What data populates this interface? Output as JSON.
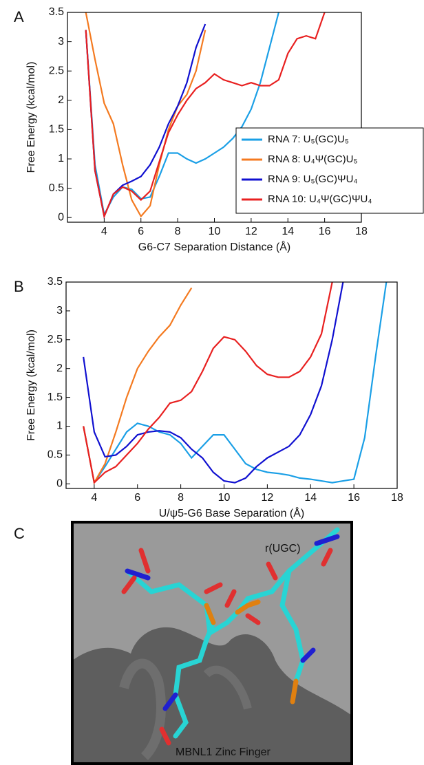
{
  "chart_data": [
    {
      "type": "line",
      "panel_label": "A",
      "ylabel": "Free Energy (kcal/mol)",
      "xlabel": "G6-C7 Separation Distance (Å)",
      "xlim": [
        2,
        18
      ],
      "ylim": [
        -0.08,
        3.5
      ],
      "xticks": [
        4,
        6,
        8,
        10,
        12,
        14,
        16,
        18
      ],
      "yticks": [
        0,
        0.5,
        1,
        1.5,
        2,
        2.5,
        3,
        3.5
      ],
      "legend": "right",
      "x": [
        3,
        3.5,
        4,
        4.5,
        5,
        5.5,
        6,
        6.5,
        7,
        7.5,
        8,
        8.5,
        9,
        9.5,
        10,
        10.5,
        11,
        11.5,
        12,
        12.5,
        13,
        13.5,
        14,
        14.5,
        15,
        15.5,
        16
      ],
      "series": [
        {
          "name": "RNA 7: U₅(GC)U₅",
          "color": "#1a9fe6",
          "values": [
            3.2,
            0.9,
            0.05,
            0.35,
            0.52,
            0.48,
            0.32,
            0.35,
            0.7,
            1.1,
            1.1,
            1.0,
            0.93,
            1.0,
            1.1,
            1.2,
            1.35,
            1.55,
            1.85,
            2.3,
            2.9,
            3.5,
            null,
            null,
            null,
            null,
            null
          ]
        },
        {
          "name": "RNA 8: U₄Ψ(GC)U₅",
          "color": "#f47a20",
          "values": [
            3.5,
            2.7,
            1.95,
            1.6,
            0.9,
            0.3,
            0.02,
            0.2,
            0.9,
            1.5,
            1.9,
            2.1,
            2.5,
            3.2,
            null,
            null,
            null,
            null,
            null,
            null,
            null,
            null,
            null,
            null,
            null,
            null,
            null
          ]
        },
        {
          "name": "RNA 9: U₅(GC)ΨU₄",
          "color": "#1010d0",
          "values": [
            3.2,
            0.8,
            0.02,
            0.4,
            0.55,
            0.62,
            0.7,
            0.9,
            1.2,
            1.6,
            1.9,
            2.3,
            2.9,
            3.3,
            null,
            null,
            null,
            null,
            null,
            null,
            null,
            null,
            null,
            null,
            null,
            null,
            null
          ]
        },
        {
          "name": "RNA 10: U₄Ψ(GC)ΨU₄",
          "color": "#e82020",
          "values": [
            3.2,
            0.8,
            0.02,
            0.4,
            0.52,
            0.45,
            0.3,
            0.45,
            0.95,
            1.45,
            1.75,
            2.0,
            2.2,
            2.3,
            2.45,
            2.35,
            2.3,
            2.25,
            2.3,
            2.25,
            2.25,
            2.35,
            2.8,
            3.05,
            3.1,
            3.05,
            3.5
          ]
        }
      ]
    },
    {
      "type": "line",
      "panel_label": "B",
      "ylabel": "Free Energy (kcal/mol)",
      "xlabel": "U/ψ5-G6 Base Separation (Å)",
      "xlim": [
        2.7,
        18
      ],
      "ylim": [
        -0.08,
        3.5
      ],
      "xticks": [
        4,
        6,
        8,
        10,
        12,
        14,
        16,
        18
      ],
      "yticks": [
        0,
        0.5,
        1,
        1.5,
        2,
        2.5,
        3,
        3.5
      ],
      "x": [
        3.5,
        4,
        4.5,
        5,
        5.5,
        6,
        6.5,
        7,
        7.5,
        8,
        8.5,
        9,
        9.5,
        10,
        10.5,
        11,
        11.5,
        12,
        12.5,
        13,
        13.5,
        14,
        14.5,
        15,
        15.5,
        16,
        16.5,
        17,
        17.5
      ],
      "series": [
        {
          "color": "#1a9fe6",
          "values": [
            1.0,
            0.02,
            0.3,
            0.6,
            0.9,
            1.05,
            1.0,
            0.9,
            0.85,
            0.7,
            0.45,
            0.65,
            0.85,
            0.85,
            0.6,
            0.35,
            0.25,
            0.2,
            0.18,
            0.15,
            0.1,
            0.08,
            0.05,
            0.02,
            0.05,
            0.08,
            0.8,
            2.2,
            3.5
          ]
        },
        {
          "color": "#f47a20",
          "values": [
            1.0,
            0.02,
            0.35,
            0.9,
            1.5,
            2.0,
            2.3,
            2.55,
            2.75,
            3.1,
            3.4,
            null,
            null,
            null,
            null,
            null,
            null,
            null,
            null,
            null,
            null,
            null,
            null,
            null,
            null,
            null,
            null,
            null,
            null
          ]
        },
        {
          "color": "#1010d0",
          "values": [
            2.2,
            0.9,
            0.47,
            0.5,
            0.65,
            0.85,
            0.9,
            0.92,
            0.9,
            0.8,
            0.6,
            0.45,
            0.2,
            0.05,
            0.02,
            0.1,
            0.3,
            0.45,
            0.55,
            0.65,
            0.85,
            1.2,
            1.7,
            2.5,
            3.5,
            null,
            null,
            null,
            null
          ]
        },
        {
          "color": "#e82020",
          "values": [
            1.0,
            0.02,
            0.2,
            0.3,
            0.5,
            0.7,
            0.95,
            1.15,
            1.4,
            1.45,
            1.6,
            1.95,
            2.35,
            2.55,
            2.5,
            2.3,
            2.05,
            1.9,
            1.85,
            1.85,
            1.95,
            2.2,
            2.6,
            3.5,
            null,
            null,
            null,
            null,
            null
          ]
        }
      ]
    }
  ],
  "panel_c": {
    "label": "C",
    "annotations": [
      "r(UGC)",
      "MBNL1 Zinc Finger"
    ]
  }
}
